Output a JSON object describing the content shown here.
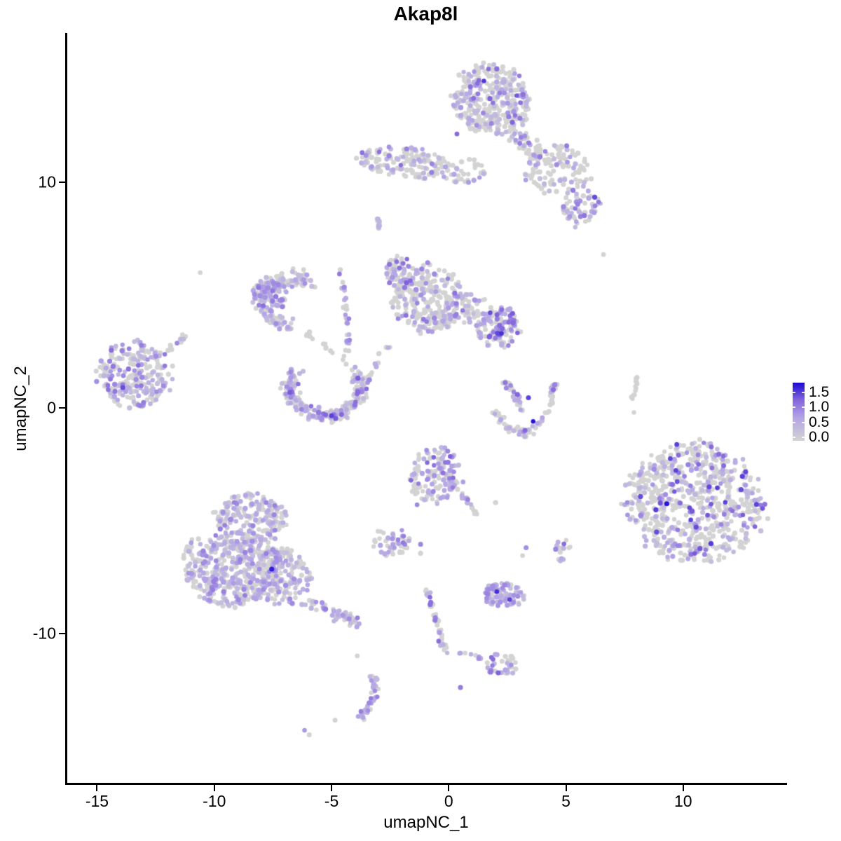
{
  "chart_data": {
    "type": "scatter",
    "title": "Akap8l",
    "xlabel": "umapNC_1",
    "ylabel": "umapNC_2",
    "grid": false,
    "xlim": [
      -16.3,
      14.4
    ],
    "ylim": [
      -16.63,
      16.63
    ],
    "x_ticks": [
      {
        "v": -15,
        "label": "-15"
      },
      {
        "v": -10,
        "label": "-10"
      },
      {
        "v": -5,
        "label": "-5"
      },
      {
        "v": 0,
        "label": "0"
      },
      {
        "v": 5,
        "label": "5"
      },
      {
        "v": 10,
        "label": "10"
      }
    ],
    "y_ticks": [
      {
        "v": 10,
        "label": "10"
      },
      {
        "v": 0,
        "label": "0"
      },
      {
        "v": -10,
        "label": "-10"
      }
    ],
    "legend": {
      "position": "right",
      "ticks": [
        {
          "v": 1.5,
          "label": "1.5"
        },
        {
          "v": 1.0,
          "label": "1.0"
        },
        {
          "v": 0.5,
          "label": "0.5"
        },
        {
          "v": 0.0,
          "label": "0.0"
        }
      ],
      "value_range": [
        0.0,
        1.6
      ]
    },
    "colors": {
      "background": "#ffffff",
      "axis": "#000000",
      "point_gray": "#d3d3d3",
      "gradient_stops": [
        {
          "t": 0.0,
          "c": "#d3d3d3"
        },
        {
          "t": 0.4,
          "c": "#b3a4e6"
        },
        {
          "t": 0.7,
          "c": "#8466db"
        },
        {
          "t": 1.0,
          "c": "#1a09d5"
        }
      ]
    },
    "point_radius": 3.3,
    "seed": 11,
    "clusters": [
      {
        "id": "top-main",
        "type": "blob",
        "x": 1.8,
        "y": 13.7,
        "rx": 1.75,
        "ry": 1.55,
        "rot": -20,
        "n": 330,
        "frac": 0.38,
        "vmin": 0.3,
        "vmax": 1.15
      },
      {
        "id": "top-tail",
        "type": "trail",
        "pts": [
          [
            2.7,
            12.3
          ],
          [
            3.4,
            11.55
          ],
          [
            4.0,
            11.1
          ]
        ],
        "th": 0.5,
        "n": 50,
        "frac": 0.25,
        "vmin": 0.3,
        "vmax": 1.0
      },
      {
        "id": "upper-elongated",
        "type": "blob",
        "x": -1.95,
        "y": 10.9,
        "rx": 1.95,
        "ry": 0.7,
        "rot": -6,
        "n": 140,
        "frac": 0.32,
        "vmin": 0.3,
        "vmax": 1.1
      },
      {
        "id": "upper-bridge",
        "type": "blob",
        "x": 0.55,
        "y": 10.55,
        "rx": 1.1,
        "ry": 0.55,
        "rot": 0,
        "n": 35,
        "frac": 0.3,
        "vmin": 0.3,
        "vmax": 0.9
      },
      {
        "id": "upper-right-loose",
        "type": "blob",
        "x": 4.6,
        "y": 10.6,
        "rx": 1.5,
        "ry": 1.1,
        "rot": -10,
        "n": 110,
        "frac": 0.28,
        "vmin": 0.3,
        "vmax": 1.1
      },
      {
        "id": "upper-right-dense",
        "type": "blob",
        "x": 5.65,
        "y": 8.9,
        "rx": 0.8,
        "ry": 0.85,
        "rot": 0,
        "n": 60,
        "frac": 0.45,
        "vmin": 0.35,
        "vmax": 1.3
      },
      {
        "id": "small-streak",
        "type": "trail",
        "pts": [
          [
            -3.05,
            8.55
          ],
          [
            -2.95,
            7.95
          ]
        ],
        "th": 0.12,
        "n": 12,
        "frac": 0.5,
        "vmin": 0.4,
        "vmax": 0.9
      },
      {
        "id": "midleft-crescent",
        "type": "arc",
        "x": -6.55,
        "y": 4.7,
        "rx": 1.35,
        "ry": 1.05,
        "a0": 55,
        "a1": 265,
        "th": 0.5,
        "n": 140,
        "frac": 0.55,
        "vmin": 0.3,
        "vmax": 1.0
      },
      {
        "id": "midleft-core",
        "type": "blob",
        "x": -7.6,
        "y": 5.05,
        "rx": 0.8,
        "ry": 0.7,
        "rot": -30,
        "n": 80,
        "frac": 0.6,
        "vmin": 0.3,
        "vmax": 1.05
      },
      {
        "id": "j-trail",
        "type": "trail",
        "pts": [
          [
            -4.7,
            6.2
          ],
          [
            -4.45,
            5.1
          ],
          [
            -4.35,
            3.9
          ],
          [
            -4.3,
            2.8
          ],
          [
            -4.45,
            1.75
          ]
        ],
        "th": 0.14,
        "n": 34,
        "frac": 0.45,
        "vmin": 0.35,
        "vmax": 1.1
      },
      {
        "id": "midleft-sparse",
        "type": "trail",
        "pts": [
          [
            -6.1,
            3.4
          ],
          [
            -5.5,
            2.9
          ],
          [
            -5.0,
            2.4
          ]
        ],
        "th": 0.2,
        "n": 12,
        "frac": 0.15,
        "vmin": 0.3,
        "vmax": 0.8
      },
      {
        "id": "center-main",
        "type": "blob",
        "x": -0.9,
        "y": 4.85,
        "rx": 1.55,
        "ry": 1.5,
        "rot": 0,
        "n": 250,
        "frac": 0.28,
        "vmin": 0.3,
        "vmax": 1.1
      },
      {
        "id": "center-left-lobe",
        "type": "blob",
        "x": -2.05,
        "y": 5.95,
        "rx": 0.6,
        "ry": 0.85,
        "rot": 15,
        "n": 70,
        "frac": 0.5,
        "vmin": 0.35,
        "vmax": 1.15
      },
      {
        "id": "center-right-lobe",
        "type": "blob",
        "x": 2.15,
        "y": 3.6,
        "rx": 0.95,
        "ry": 0.9,
        "rot": 0,
        "n": 115,
        "frac": 0.5,
        "vmin": 0.5,
        "vmax": 1.35
      },
      {
        "id": "center-bridge",
        "type": "blob",
        "x": 0.7,
        "y": 4.35,
        "rx": 1.1,
        "ry": 0.75,
        "rot": 0,
        "n": 70,
        "frac": 0.3,
        "vmin": 0.3,
        "vmax": 1.0
      },
      {
        "id": "center-downleft",
        "type": "trail",
        "pts": [
          [
            -2.5,
            2.9
          ],
          [
            -3.0,
            2.1
          ],
          [
            -3.45,
            1.3
          ]
        ],
        "th": 0.18,
        "n": 14,
        "frac": 0.25,
        "vmin": 0.3,
        "vmax": 0.8
      },
      {
        "id": "far-left",
        "type": "blob",
        "x": -13.4,
        "y": 1.45,
        "rx": 1.6,
        "ry": 1.5,
        "rot": 10,
        "n": 240,
        "frac": 0.5,
        "vmin": 0.3,
        "vmax": 1.05
      },
      {
        "id": "far-left-tail",
        "type": "trail",
        "pts": [
          [
            -12.1,
            2.5
          ],
          [
            -11.5,
            2.95
          ],
          [
            -11.05,
            3.3
          ]
        ],
        "th": 0.15,
        "n": 13,
        "frac": 0.2,
        "vmin": 0.3,
        "vmax": 0.9
      },
      {
        "id": "smile-crescent",
        "type": "arc",
        "x": -5.25,
        "y": 0.95,
        "rx": 1.5,
        "ry": 1.3,
        "a0": 150,
        "a1": 395,
        "th": 0.45,
        "n": 235,
        "frac": 0.5,
        "vmin": 0.3,
        "vmax": 1.2
      },
      {
        "id": "v-left-arm",
        "type": "trail",
        "pts": [
          [
            1.95,
            -0.25
          ],
          [
            2.55,
            -0.85
          ],
          [
            3.1,
            -1.15
          ],
          [
            3.6,
            -0.95
          ]
        ],
        "th": 0.22,
        "n": 45,
        "frac": 0.35,
        "vmin": 0.35,
        "vmax": 1.2
      },
      {
        "id": "v-right-arm",
        "type": "trail",
        "pts": [
          [
            3.6,
            -0.95
          ],
          [
            4.1,
            -0.35
          ],
          [
            4.45,
            0.5
          ],
          [
            4.5,
            1.1
          ]
        ],
        "th": 0.18,
        "n": 35,
        "frac": 0.35,
        "vmin": 0.35,
        "vmax": 1.1
      },
      {
        "id": "v-upper-arm",
        "type": "trail",
        "pts": [
          [
            2.3,
            1.35
          ],
          [
            2.75,
            0.6
          ],
          [
            3.15,
            -0.1
          ]
        ],
        "th": 0.2,
        "n": 30,
        "frac": 0.4,
        "vmin": 0.35,
        "vmax": 1.25
      },
      {
        "id": "gray-strip",
        "type": "trail",
        "pts": [
          [
            7.8,
            0.35
          ],
          [
            7.95,
            0.95
          ],
          [
            8.1,
            1.5
          ]
        ],
        "th": 0.1,
        "n": 11,
        "frac": 0.0,
        "vmin": 0,
        "vmax": 0
      },
      {
        "id": "right-big",
        "type": "blob",
        "x": 10.45,
        "y": -4.2,
        "rx": 2.95,
        "ry": 2.65,
        "rot": -15,
        "n": 700,
        "frac": 0.34,
        "vmin": 0.3,
        "vmax": 1.35
      },
      {
        "id": "center-bottom",
        "type": "blob",
        "x": -0.55,
        "y": -2.95,
        "rx": 1.15,
        "ry": 1.25,
        "rot": 0,
        "n": 150,
        "frac": 0.4,
        "vmin": 0.35,
        "vmax": 1.15
      },
      {
        "id": "center-bottom-tail",
        "type": "trail",
        "pts": [
          [
            0.5,
            -3.8
          ],
          [
            0.95,
            -4.35
          ],
          [
            1.2,
            -4.75
          ]
        ],
        "th": 0.15,
        "n": 18,
        "frac": 0.5,
        "vmin": 0.4,
        "vmax": 1.0
      },
      {
        "id": "bottomleft-upper",
        "type": "blob",
        "x": -8.45,
        "y": -4.95,
        "rx": 1.5,
        "ry": 1.15,
        "rot": 0,
        "n": 210,
        "frac": 0.5,
        "vmin": 0.25,
        "vmax": 0.95
      },
      {
        "id": "bottomleft-lower",
        "type": "blob",
        "x": -9.1,
        "y": -7.2,
        "rx": 2.0,
        "ry": 1.6,
        "rot": 8,
        "n": 450,
        "frac": 0.5,
        "vmin": 0.25,
        "vmax": 0.95
      },
      {
        "id": "bottomleft-right",
        "type": "blob",
        "x": -7.15,
        "y": -7.5,
        "rx": 1.25,
        "ry": 1.25,
        "rot": 0,
        "n": 150,
        "frac": 0.5,
        "vmin": 0.25,
        "vmax": 0.95
      },
      {
        "id": "bottomleft-tail",
        "type": "trail",
        "pts": [
          [
            -6.2,
            -8.5
          ],
          [
            -5.2,
            -9.0
          ],
          [
            -4.2,
            -9.35
          ],
          [
            -3.75,
            -9.6
          ]
        ],
        "th": 0.3,
        "n": 60,
        "frac": 0.55,
        "vmin": 0.3,
        "vmax": 1.0
      },
      {
        "id": "bottomleft-fringe",
        "type": "blob",
        "x": -10.9,
        "y": -6.8,
        "rx": 0.5,
        "ry": 1.1,
        "rot": 0,
        "n": 22,
        "frac": 0.15,
        "vmin": 0.3,
        "vmax": 0.7
      },
      {
        "id": "small-center-low",
        "type": "blob",
        "x": -2.45,
        "y": -5.9,
        "rx": 0.8,
        "ry": 0.65,
        "rot": 0,
        "n": 48,
        "frac": 0.3,
        "vmin": 0.5,
        "vmax": 1.1
      },
      {
        "id": "small-right-low",
        "type": "blob",
        "x": 4.95,
        "y": -6.35,
        "rx": 0.55,
        "ry": 0.5,
        "rot": 0,
        "n": 16,
        "frac": 0.4,
        "vmin": 0.4,
        "vmax": 1.1
      },
      {
        "id": "dense-purple",
        "type": "blob",
        "x": 2.3,
        "y": -8.3,
        "rx": 0.9,
        "ry": 0.55,
        "rot": -8,
        "n": 90,
        "frac": 0.8,
        "vmin": 0.3,
        "vmax": 0.9
      },
      {
        "id": "diag-trail",
        "type": "trail",
        "pts": [
          [
            -0.95,
            -7.95
          ],
          [
            -0.75,
            -8.7
          ],
          [
            -0.5,
            -9.6
          ],
          [
            -0.25,
            -10.45
          ],
          [
            -0.05,
            -10.85
          ]
        ],
        "th": 0.16,
        "n": 42,
        "frac": 0.3,
        "vmin": 0.35,
        "vmax": 1.2
      },
      {
        "id": "diag-horiz",
        "type": "trail",
        "pts": [
          [
            0.35,
            -10.75
          ],
          [
            0.95,
            -10.95
          ],
          [
            1.55,
            -11.15
          ]
        ],
        "th": 0.1,
        "n": 8,
        "frac": 0.5,
        "vmin": 0.4,
        "vmax": 0.9
      },
      {
        "id": "trail-end",
        "type": "blob",
        "x": 2.3,
        "y": -11.4,
        "rx": 0.7,
        "ry": 0.55,
        "rot": 0,
        "n": 34,
        "frac": 0.6,
        "vmin": 0.4,
        "vmax": 1.2
      },
      {
        "id": "bottom-strip",
        "type": "trail",
        "pts": [
          [
            -3.3,
            -11.85
          ],
          [
            -3.1,
            -12.45
          ],
          [
            -3.3,
            -13.0
          ],
          [
            -3.6,
            -13.5
          ],
          [
            -3.8,
            -13.9
          ]
        ],
        "th": 0.18,
        "n": 40,
        "frac": 0.55,
        "vmin": 0.35,
        "vmax": 1.0
      }
    ],
    "extra_points": [
      {
        "x": -10.6,
        "y": 6.0,
        "v": 0
      },
      {
        "x": 6.6,
        "y": 6.8,
        "v": 0
      },
      {
        "x": 2.0,
        "y": -4.2,
        "v": 0
      },
      {
        "x": -3.9,
        "y": -11.0,
        "v": 0
      },
      {
        "x": -4.85,
        "y": -13.85,
        "v": 0
      },
      {
        "x": -1.2,
        "y": -6.05,
        "v": 0.85
      },
      {
        "x": -1.2,
        "y": -6.45,
        "v": 0
      },
      {
        "x": 3.15,
        "y": -6.55,
        "v": 0
      },
      {
        "x": 3.3,
        "y": -6.2,
        "v": 0.8
      },
      {
        "x": 0.5,
        "y": -12.4,
        "v": 0.95
      },
      {
        "x": -1.35,
        "y": -4.3,
        "v": 0.85
      },
      {
        "x": -6.15,
        "y": -14.3,
        "v": 0.75
      },
      {
        "x": -5.95,
        "y": -14.5,
        "v": 0
      },
      {
        "x": 7.9,
        "y": -0.2,
        "v": 0
      },
      {
        "x": 1.5,
        "y": 14.5,
        "v": 1.35
      },
      {
        "x": 2.9,
        "y": 13.85,
        "v": 1.2
      },
      {
        "x": 0.35,
        "y": 12.15,
        "v": 1.1
      },
      {
        "x": 3.6,
        "y": -0.6,
        "v": 1.55
      },
      {
        "x": 3.4,
        "y": 0.45,
        "v": 1.3
      },
      {
        "x": 9.3,
        "y": -4.25,
        "v": 1.55
      },
      {
        "x": -13.9,
        "y": 0.9,
        "v": 1.25
      },
      {
        "x": -7.55,
        "y": -7.15,
        "v": 1.5
      },
      {
        "x": 2.05,
        "y": -8.15,
        "v": 1.4
      },
      {
        "x": 2.6,
        "y": -8.5,
        "v": 1.3
      },
      {
        "x": 2.25,
        "y": 3.3,
        "v": 1.4
      },
      {
        "x": -5.0,
        "y": -0.35,
        "v": 1.3
      }
    ]
  }
}
